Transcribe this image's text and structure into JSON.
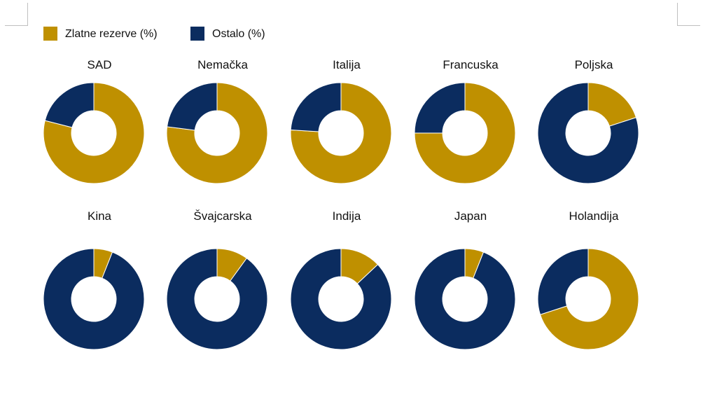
{
  "chart_data": {
    "type": "pie",
    "variant": "donut",
    "legend_position": "top-left",
    "series": [
      {
        "name": "Zlatne rezerve (%)",
        "color": "#BF9000"
      },
      {
        "name": "Ostalo (%)",
        "color": "#0B2C5F"
      }
    ],
    "charts": [
      {
        "title": "SAD",
        "values": [
          79,
          21
        ]
      },
      {
        "title": "Nemačka",
        "values": [
          77,
          23
        ]
      },
      {
        "title": "Italija",
        "values": [
          76,
          24
        ]
      },
      {
        "title": "Francuska",
        "values": [
          75,
          25
        ]
      },
      {
        "title": "Poljska",
        "values": [
          20,
          80
        ]
      },
      {
        "title": "Kina",
        "values": [
          6,
          94
        ]
      },
      {
        "title": "Švajcarska",
        "values": [
          10,
          90
        ]
      },
      {
        "title": "Indija",
        "values": [
          13,
          87
        ]
      },
      {
        "title": "Japan",
        "values": [
          6,
          94
        ]
      },
      {
        "title": "Holandija",
        "values": [
          70,
          30
        ]
      }
    ]
  }
}
